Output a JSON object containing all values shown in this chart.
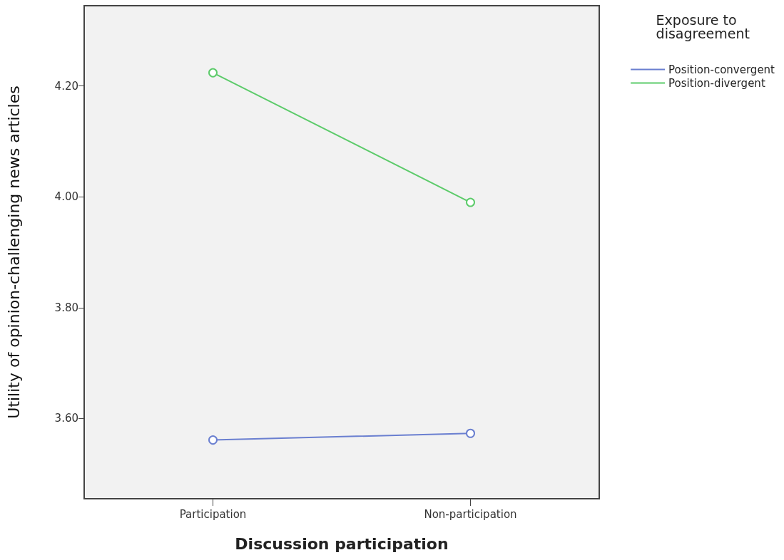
{
  "chart_data": {
    "type": "line",
    "xlabel": "Discussion participation",
    "ylabel": "Utility of opinion-challenging news articles",
    "legend_title": "Exposure to disagreement",
    "categories": [
      "Participation",
      "Non-participation"
    ],
    "series": [
      {
        "name": "Position-convergent",
        "color": "#6a7fd0",
        "values": [
          3.561,
          3.573
        ]
      },
      {
        "name": "Position-divergent",
        "color": "#5ccb6a",
        "values": [
          4.224,
          3.99
        ]
      }
    ],
    "ylim": [
      3.455,
      4.345
    ],
    "yticks": [
      {
        "value": 3.6,
        "label": "3.60"
      },
      {
        "value": 3.8,
        "label": "3.80"
      },
      {
        "value": 4.0,
        "label": "4.00"
      },
      {
        "value": 4.2,
        "label": "4.20"
      }
    ],
    "grid": false,
    "legend": "top right",
    "marker": "circle",
    "line_style": "solid"
  }
}
